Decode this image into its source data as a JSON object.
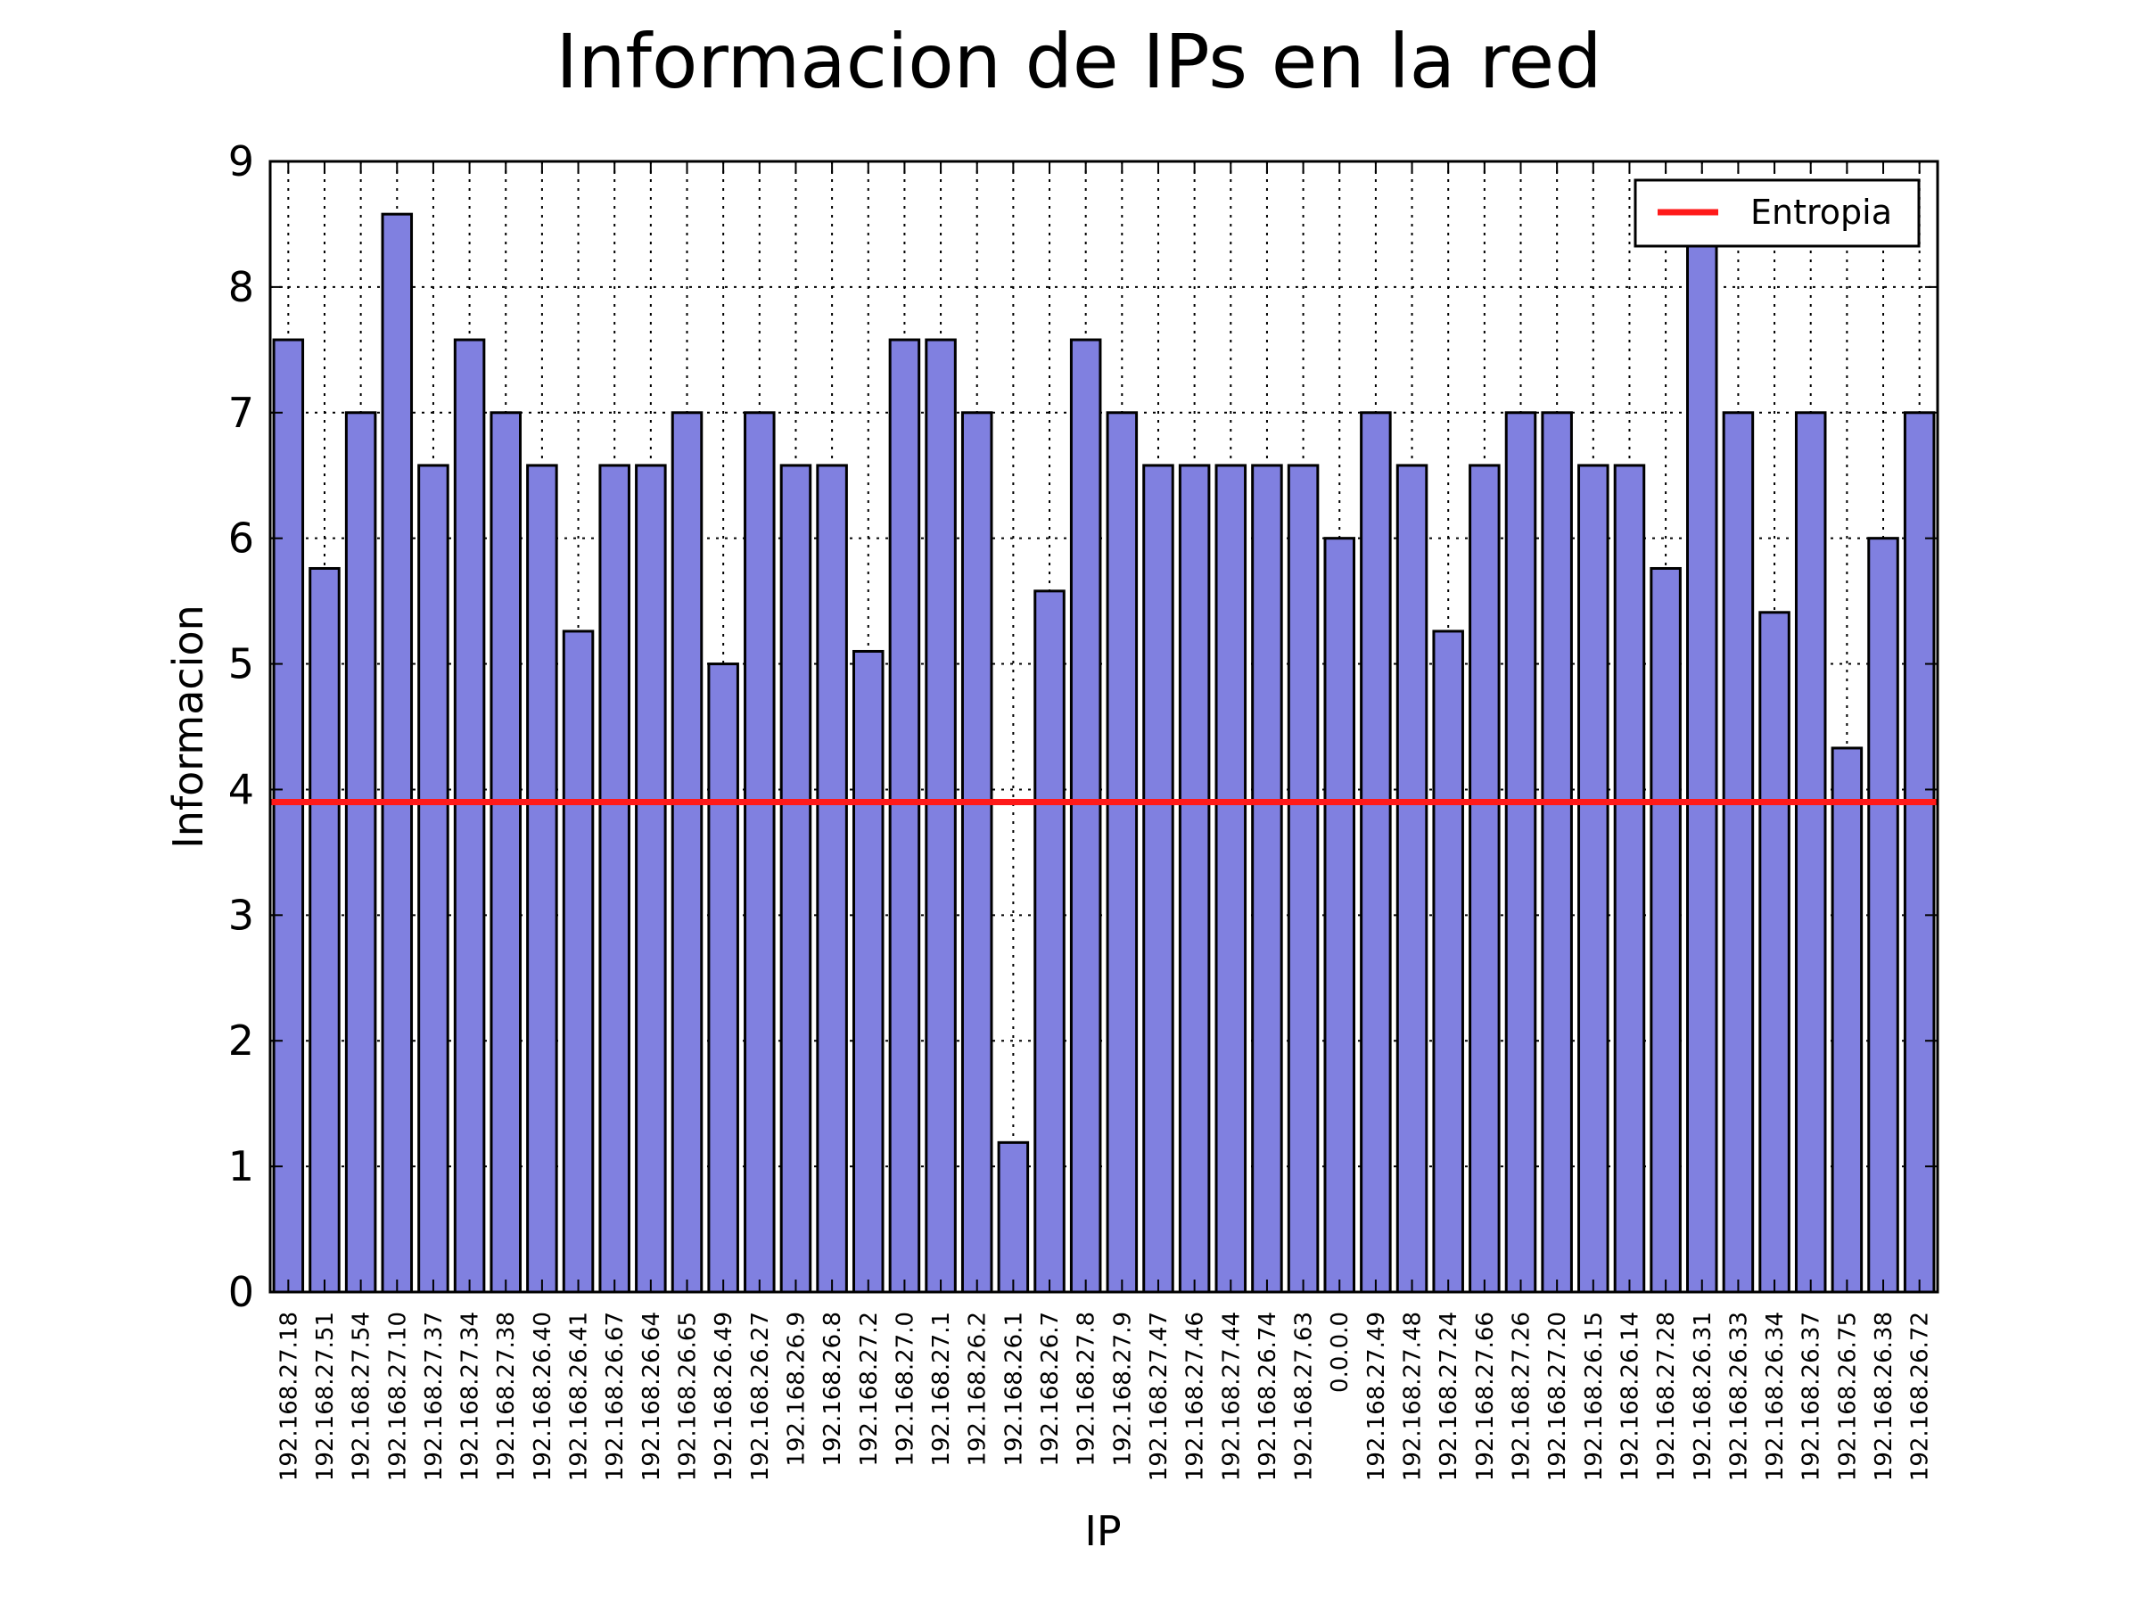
{
  "chart_data": {
    "type": "bar",
    "title": "Informacion de IPs en la red",
    "xlabel": "IP",
    "ylabel": "Informacion",
    "ylim": [
      0,
      9
    ],
    "yticks": [
      "0",
      "1",
      "2",
      "3",
      "4",
      "5",
      "6",
      "7",
      "8",
      "9"
    ],
    "grid": true,
    "legend_position": "top-right",
    "categories": [
      "192.168.27.18",
      "192.168.27.51",
      "192.168.27.54",
      "192.168.27.10",
      "192.168.27.37",
      "192.168.27.34",
      "192.168.27.38",
      "192.168.26.40",
      "192.168.26.41",
      "192.168.26.67",
      "192.168.26.64",
      "192.168.26.65",
      "192.168.26.49",
      "192.168.26.27",
      "192.168.26.9",
      "192.168.26.8",
      "192.168.27.2",
      "192.168.27.0",
      "192.168.27.1",
      "192.168.26.2",
      "192.168.26.1",
      "192.168.26.7",
      "192.168.27.8",
      "192.168.27.9",
      "192.168.27.47",
      "192.168.27.46",
      "192.168.27.44",
      "192.168.26.74",
      "192.168.27.63",
      "0.0.0.0",
      "192.168.27.49",
      "192.168.27.48",
      "192.168.27.24",
      "192.168.27.66",
      "192.168.27.26",
      "192.168.27.20",
      "192.168.26.15",
      "192.168.26.14",
      "192.168.27.28",
      "192.168.26.31",
      "192.168.26.33",
      "192.168.26.34",
      "192.168.26.37",
      "192.168.26.75",
      "192.168.26.38",
      "192.168.26.72"
    ],
    "values": [
      7.58,
      5.76,
      7.0,
      8.58,
      6.58,
      7.58,
      7.0,
      6.58,
      5.26,
      6.58,
      6.58,
      7.0,
      5.0,
      7.0,
      6.58,
      6.58,
      5.1,
      7.58,
      7.58,
      7.0,
      1.19,
      5.58,
      7.58,
      7.0,
      6.58,
      6.58,
      6.58,
      6.58,
      6.58,
      6.0,
      7.0,
      6.58,
      5.26,
      6.58,
      7.0,
      7.0,
      6.58,
      6.58,
      5.76,
      8.58,
      7.0,
      5.41,
      7.0,
      4.33,
      6.0,
      7.0
    ],
    "entropy": 3.9,
    "legend": [
      "Entropia"
    ],
    "colors": {
      "bar_fill": "#8080e0",
      "bar_edge": "#000000",
      "entropy_line": "#ff1a1a"
    }
  }
}
